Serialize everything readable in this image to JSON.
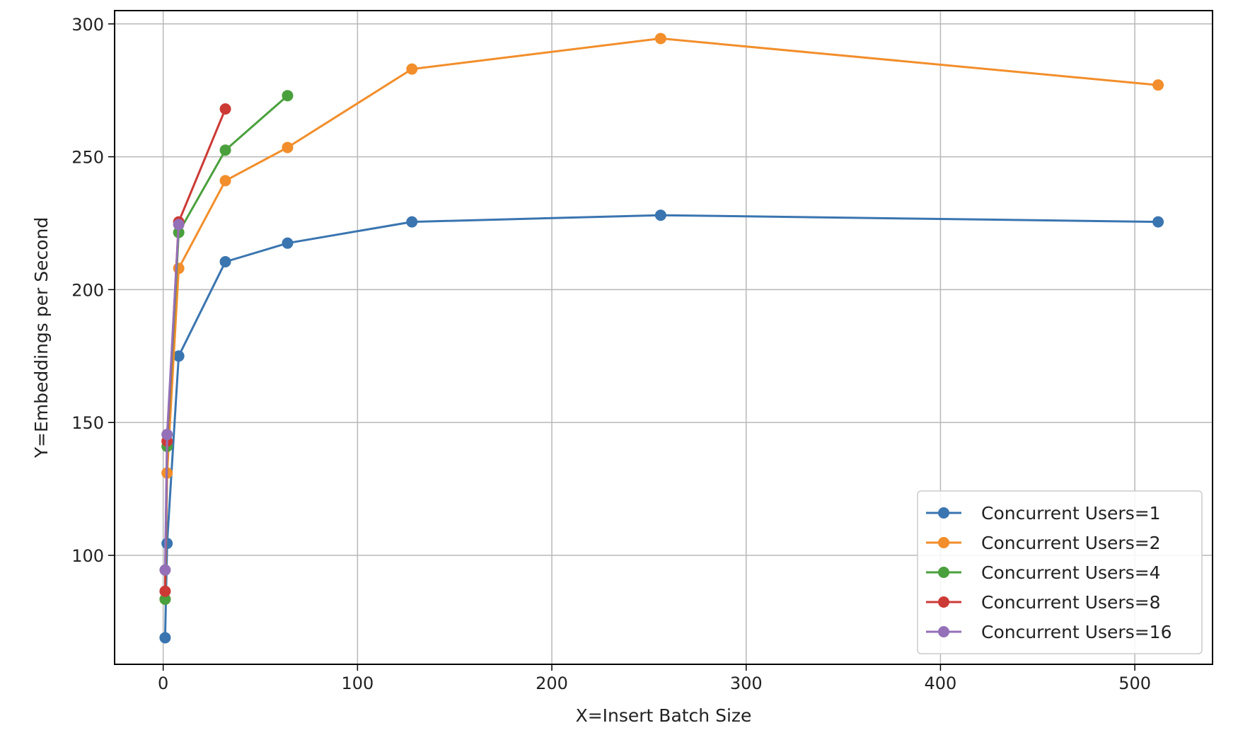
{
  "chart_data": {
    "type": "line",
    "title": "",
    "xlabel": "X=Insert Batch Size",
    "ylabel": "Y=Embeddings per Second",
    "xlim": [
      -25,
      540
    ],
    "ylim": [
      59,
      305
    ],
    "xticks": [
      0,
      100,
      200,
      300,
      400,
      500
    ],
    "yticks": [
      100,
      150,
      200,
      250,
      300
    ],
    "grid": true,
    "legend_position": "lower right",
    "series": [
      {
        "name": "Concurrent Users=1",
        "color": "#3a75b0",
        "x": [
          1,
          2,
          8,
          32,
          64,
          128,
          256,
          512
        ],
        "y": [
          69,
          104.5,
          175,
          210.5,
          217.5,
          225.5,
          228,
          225.5
        ]
      },
      {
        "name": "Concurrent Users=2",
        "color": "#f28e2b",
        "x": [
          1,
          2,
          8,
          32,
          64,
          128,
          256,
          512
        ],
        "y": [
          83.5,
          131,
          208,
          241,
          253.5,
          283,
          294.5,
          277
        ]
      },
      {
        "name": "Concurrent Users=4",
        "color": "#4aa03d",
        "x": [
          1,
          2,
          8,
          32,
          64
        ],
        "y": [
          83.5,
          141,
          221.5,
          252.5,
          273
        ]
      },
      {
        "name": "Concurrent Users=8",
        "color": "#cc3a35",
        "x": [
          1,
          2,
          8,
          32
        ],
        "y": [
          86.5,
          143,
          225.5,
          268
        ]
      },
      {
        "name": "Concurrent Users=16",
        "color": "#9470b8",
        "x": [
          1,
          2,
          8
        ],
        "y": [
          94.5,
          145.5,
          224.5
        ]
      }
    ]
  },
  "style": {
    "grid_color": "#b8b8b8",
    "axis_color": "#000000",
    "legend_border_color": "#cccccc"
  }
}
